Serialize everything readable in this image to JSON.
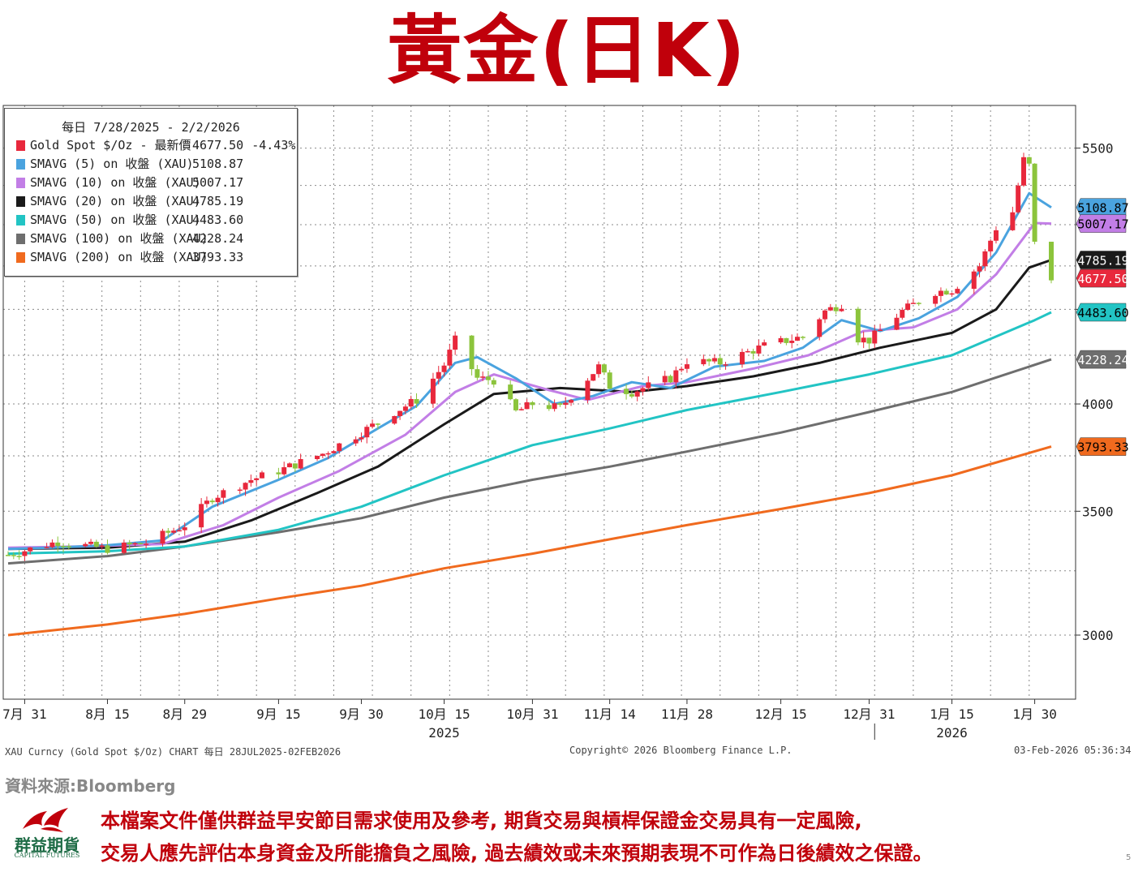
{
  "title": "黃金(日K)",
  "legend": {
    "header": "每日 7/28/2025 - 2/2/2026",
    "items": [
      {
        "name": "Gold Spot $/Oz - 最新價",
        "value": "4677.50",
        "change": "-4.43%",
        "color": "#e8283c"
      },
      {
        "name": "SMAVG (5)  on 收盤 (XAU)",
        "value": "5108.87",
        "color": "#4aa3df"
      },
      {
        "name": "SMAVG (10)  on 收盤 (XAU)",
        "value": "5007.17",
        "color": "#c27ee6"
      },
      {
        "name": "SMAVG (20)  on 收盤 (XAU)",
        "value": "4785.19",
        "color": "#1a1a1a"
      },
      {
        "name": "SMAVG (50)  on 收盤 (XAU)",
        "value": "4483.60",
        "color": "#22c4c4"
      },
      {
        "name": "SMAVG (100)  on 收盤 (XAU)",
        "value": "4228.24",
        "color": "#6e6e6e"
      },
      {
        "name": "SMAVG (200)  on 收盤 (XAU)",
        "value": "3793.33",
        "color": "#f06a1e"
      }
    ]
  },
  "chart_data": {
    "type": "line",
    "y_scale": "log",
    "y_ticks": [
      3000,
      3500,
      4000,
      4500,
      5000,
      5500
    ],
    "y_tick_labels": [
      "3000",
      "3500",
      "4000",
      "",
      "",
      "5500"
    ],
    "ylim": [
      2770,
      5800
    ],
    "x_labels": [
      "7月 31",
      "8月 15",
      "8月 29",
      "9月 15",
      "9月 30",
      "10月 15",
      "10月 31",
      "11月 14",
      "11月 28",
      "12月 15",
      "12月 31",
      "1月 15",
      "1月 30"
    ],
    "x_label_dates": [
      "2025-07-31",
      "2025-08-15",
      "2025-08-29",
      "2025-09-15",
      "2025-09-30",
      "2025-10-15",
      "2025-10-31",
      "2025-11-14",
      "2025-11-28",
      "2025-12-15",
      "2025-12-31",
      "2026-01-15",
      "2026-01-30"
    ],
    "year_labels": [
      {
        "label": "2025",
        "date": "2025-10-15"
      },
      {
        "label": "2026",
        "date": "2026-01-15"
      }
    ],
    "x_range": [
      "2025-07-28",
      "2026-02-02"
    ],
    "price_series": {
      "name": "Gold Spot $/Oz",
      "points": [
        [
          "2025-07-28",
          3315
        ],
        [
          "2025-08-06",
          3370
        ],
        [
          "2025-08-15",
          3340
        ],
        [
          "2025-08-22",
          3365
        ],
        [
          "2025-08-29",
          3440
        ],
        [
          "2025-09-03",
          3560
        ],
        [
          "2025-09-10",
          3640
        ],
        [
          "2025-09-15",
          3680
        ],
        [
          "2025-09-23",
          3760
        ],
        [
          "2025-09-30",
          3860
        ],
        [
          "2025-10-06",
          3960
        ],
        [
          "2025-10-10",
          4020
        ],
        [
          "2025-10-15",
          4200
        ],
        [
          "2025-10-17",
          4330
        ],
        [
          "2025-10-21",
          4130
        ],
        [
          "2025-10-24",
          4120
        ],
        [
          "2025-10-28",
          3960
        ],
        [
          "2025-10-31",
          4000
        ],
        [
          "2025-11-05",
          3980
        ],
        [
          "2025-11-12",
          4190
        ],
        [
          "2025-11-14",
          4090
        ],
        [
          "2025-11-18",
          4060
        ],
        [
          "2025-11-25",
          4130
        ],
        [
          "2025-11-28",
          4220
        ],
        [
          "2025-12-04",
          4210
        ],
        [
          "2025-12-12",
          4300
        ],
        [
          "2025-12-19",
          4350
        ],
        [
          "2025-12-23",
          4490
        ],
        [
          "2025-12-26",
          4530
        ],
        [
          "2025-12-29",
          4340
        ],
        [
          "2025-12-31",
          4330
        ],
        [
          "2026-01-06",
          4490
        ],
        [
          "2026-01-12",
          4600
        ],
        [
          "2026-01-15",
          4610
        ],
        [
          "2026-01-20",
          4750
        ],
        [
          "2026-01-23",
          4980
        ],
        [
          "2026-01-26",
          5080
        ],
        [
          "2026-01-28",
          5420
        ],
        [
          "2026-01-29",
          5380
        ],
        [
          "2026-01-30",
          4880
        ],
        [
          "2026-02-02",
          4677.5
        ]
      ]
    },
    "series": [
      {
        "name": "SMAVG (5)",
        "last": 5108.87,
        "color": "#4aa3df",
        "points": [
          [
            "2025-07-28",
            3340
          ],
          [
            "2025-08-05",
            3345
          ],
          [
            "2025-08-15",
            3355
          ],
          [
            "2025-08-25",
            3375
          ],
          [
            "2025-09-03",
            3520
          ],
          [
            "2025-09-15",
            3640
          ],
          [
            "2025-09-24",
            3740
          ],
          [
            "2025-10-03",
            3880
          ],
          [
            "2025-10-10",
            3990
          ],
          [
            "2025-10-17",
            4210
          ],
          [
            "2025-10-21",
            4240
          ],
          [
            "2025-10-28",
            4130
          ],
          [
            "2025-11-04",
            4000
          ],
          [
            "2025-11-11",
            4040
          ],
          [
            "2025-11-18",
            4110
          ],
          [
            "2025-11-25",
            4080
          ],
          [
            "2025-12-03",
            4190
          ],
          [
            "2025-12-12",
            4220
          ],
          [
            "2025-12-19",
            4290
          ],
          [
            "2025-12-26",
            4440
          ],
          [
            "2026-01-02",
            4380
          ],
          [
            "2026-01-09",
            4450
          ],
          [
            "2026-01-16",
            4570
          ],
          [
            "2026-01-23",
            4830
          ],
          [
            "2026-01-29",
            5200
          ],
          [
            "2026-02-02",
            5108.87
          ]
        ]
      },
      {
        "name": "SMAVG (10)",
        "last": 5007.17,
        "color": "#c27ee6",
        "points": [
          [
            "2025-07-28",
            3345
          ],
          [
            "2025-08-10",
            3350
          ],
          [
            "2025-08-25",
            3360
          ],
          [
            "2025-09-05",
            3440
          ],
          [
            "2025-09-15",
            3560
          ],
          [
            "2025-09-26",
            3680
          ],
          [
            "2025-10-08",
            3850
          ],
          [
            "2025-10-17",
            4060
          ],
          [
            "2025-10-24",
            4150
          ],
          [
            "2025-11-03",
            4070
          ],
          [
            "2025-11-10",
            4020
          ],
          [
            "2025-11-20",
            4090
          ],
          [
            "2025-11-28",
            4110
          ],
          [
            "2025-12-10",
            4180
          ],
          [
            "2025-12-20",
            4250
          ],
          [
            "2025-12-30",
            4380
          ],
          [
            "2026-01-08",
            4400
          ],
          [
            "2026-01-16",
            4500
          ],
          [
            "2026-01-23",
            4700
          ],
          [
            "2026-01-30",
            5010
          ],
          [
            "2026-02-02",
            5007.17
          ]
        ]
      },
      {
        "name": "SMAVG (20)",
        "last": 4785.19,
        "color": "#1a1a1a",
        "points": [
          [
            "2025-07-28",
            3340
          ],
          [
            "2025-08-15",
            3345
          ],
          [
            "2025-08-29",
            3370
          ],
          [
            "2025-09-10",
            3460
          ],
          [
            "2025-09-22",
            3580
          ],
          [
            "2025-10-03",
            3700
          ],
          [
            "2025-10-15",
            3900
          ],
          [
            "2025-10-24",
            4050
          ],
          [
            "2025-11-05",
            4080
          ],
          [
            "2025-11-18",
            4060
          ],
          [
            "2025-11-28",
            4090
          ],
          [
            "2025-12-10",
            4140
          ],
          [
            "2025-12-22",
            4210
          ],
          [
            "2026-01-02",
            4290
          ],
          [
            "2026-01-15",
            4370
          ],
          [
            "2026-01-23",
            4500
          ],
          [
            "2026-01-29",
            4740
          ],
          [
            "2026-02-02",
            4785.19
          ]
        ]
      },
      {
        "name": "SMAVG (50)",
        "last": 4483.6,
        "color": "#22c4c4",
        "points": [
          [
            "2025-07-28",
            3320
          ],
          [
            "2025-08-15",
            3330
          ],
          [
            "2025-08-29",
            3350
          ],
          [
            "2025-09-15",
            3420
          ],
          [
            "2025-09-30",
            3520
          ],
          [
            "2025-10-15",
            3660
          ],
          [
            "2025-10-31",
            3800
          ],
          [
            "2025-11-14",
            3880
          ],
          [
            "2025-11-28",
            3970
          ],
          [
            "2025-12-15",
            4060
          ],
          [
            "2025-12-31",
            4150
          ],
          [
            "2026-01-15",
            4250
          ],
          [
            "2026-01-30",
            4440
          ],
          [
            "2026-02-02",
            4483.6
          ]
        ]
      },
      {
        "name": "SMAVG (100)",
        "last": 4228.24,
        "color": "#6e6e6e",
        "points": [
          [
            "2025-07-28",
            3280
          ],
          [
            "2025-08-15",
            3310
          ],
          [
            "2025-08-29",
            3350
          ],
          [
            "2025-09-15",
            3410
          ],
          [
            "2025-09-30",
            3470
          ],
          [
            "2025-10-15",
            3560
          ],
          [
            "2025-10-31",
            3640
          ],
          [
            "2025-11-14",
            3700
          ],
          [
            "2025-11-28",
            3770
          ],
          [
            "2025-12-15",
            3860
          ],
          [
            "2025-12-31",
            3960
          ],
          [
            "2026-01-15",
            4060
          ],
          [
            "2026-02-02",
            4228.24
          ]
        ]
      },
      {
        "name": "SMAVG (200)",
        "last": 3793.33,
        "color": "#f06a1e",
        "points": [
          [
            "2025-07-28",
            3000
          ],
          [
            "2025-08-15",
            3040
          ],
          [
            "2025-08-29",
            3080
          ],
          [
            "2025-09-15",
            3140
          ],
          [
            "2025-09-30",
            3190
          ],
          [
            "2025-10-15",
            3260
          ],
          [
            "2025-10-31",
            3320
          ],
          [
            "2025-11-14",
            3380
          ],
          [
            "2025-11-28",
            3440
          ],
          [
            "2025-12-15",
            3510
          ],
          [
            "2025-12-31",
            3580
          ],
          [
            "2026-01-15",
            3660
          ],
          [
            "2026-02-02",
            3793.33
          ]
        ]
      }
    ],
    "right_tags": [
      {
        "value": 5108.87,
        "label": "5108.87",
        "color": "#4aa3df",
        "text_color": "#000000"
      },
      {
        "value": 5007.17,
        "label": "5007.17",
        "color": "#c27ee6",
        "text_color": "#000000"
      },
      {
        "value": 4785.19,
        "label": "4785.19",
        "color": "#1a1a1a",
        "text_color": "#ffffff"
      },
      {
        "value": 4677.5,
        "label": "4677.50",
        "color": "#e8283c",
        "text_color": "#ffffff"
      },
      {
        "value": 4483.6,
        "label": "4483.60",
        "color": "#22c4c4",
        "text_color": "#000000"
      },
      {
        "value": 4228.24,
        "label": "4228.24",
        "color": "#6e6e6e",
        "text_color": "#ffffff"
      },
      {
        "value": 3793.33,
        "label": "3793.33",
        "color": "#f06a1e",
        "text_color": "#000000"
      }
    ],
    "grid": true
  },
  "footer": {
    "left": "XAU Curncy (Gold Spot   $/Oz) CHART 每日 28JUL2025-02FEB2026",
    "center": "Copyright© 2026 Bloomberg Finance L.P.",
    "right": "03-Feb-2026 05:36:34"
  },
  "source": "資料來源:Bloomberg",
  "disclaimer": {
    "line1": "本檔案文件僅供群益早安節目需求使用及參考, 期貨交易與槓桿保證金交易具有一定風險,",
    "line2": "交易人應先評估本身資金及所能擔負之風險, 過去績效或未來預期表現不可作為日後績效之保證。"
  },
  "logo": {
    "name": "群益期貨",
    "subtitle": "CAPITAL FUTURES"
  },
  "page_number": "5"
}
